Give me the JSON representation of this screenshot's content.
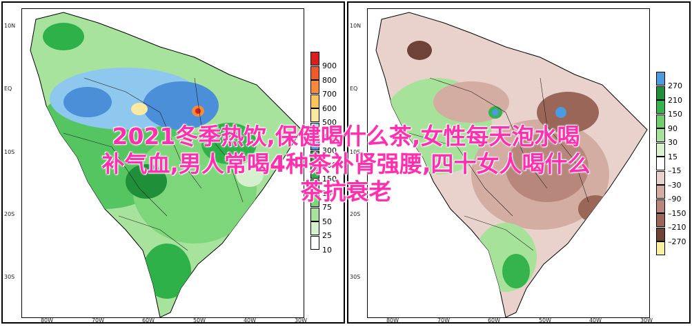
{
  "left_map": {
    "lat_labels": [
      "10N",
      "EQ",
      "10S",
      "20S",
      "30S"
    ],
    "lon_labels": [
      "80W",
      "70W",
      "60W",
      "50W",
      "40W",
      "30W"
    ],
    "legend": [
      {
        "label": "900",
        "color": "#d81e1e"
      },
      {
        "label": "800",
        "color": "#ee5a2a"
      },
      {
        "label": "700",
        "color": "#f88a3a"
      },
      {
        "label": "600",
        "color": "#f9c45a"
      },
      {
        "label": "500",
        "color": "#fbe9a0"
      },
      {
        "label": "400",
        "color": "#8ec8ef"
      },
      {
        "label": "300",
        "color": "#4a8fd8"
      },
      {
        "label": "200",
        "color": "#1f8f3a"
      },
      {
        "label": "150",
        "color": "#2fb14a"
      },
      {
        "label": "100",
        "color": "#54c560"
      },
      {
        "label": "75",
        "color": "#7ed67a"
      },
      {
        "label": "50",
        "color": "#a8e39e"
      },
      {
        "label": "25",
        "color": "#d4f0cc"
      },
      {
        "label": "10",
        "color": "#ffffff"
      }
    ]
  },
  "right_map": {
    "lat_labels": [
      "10N",
      "EQ",
      "10S",
      "20S",
      "30S"
    ],
    "lon_labels": [
      "80W",
      "70W",
      "60W",
      "50W",
      "40W",
      "30W"
    ],
    "legend": [
      {
        "label": "270",
        "color": "#4a9be0"
      },
      {
        "label": "210",
        "color": "#1f8f3a"
      },
      {
        "label": "150",
        "color": "#35b34c"
      },
      {
        "label": "90",
        "color": "#6fcf6c"
      },
      {
        "label": "30",
        "color": "#a6e29a"
      },
      {
        "label": "15",
        "color": "#d8f2d0"
      },
      {
        "label": "–15",
        "color": "#ffffff"
      },
      {
        "label": "–30",
        "color": "#e9d2cc"
      },
      {
        "label": "–90",
        "color": "#d3aca2"
      },
      {
        "label": "–150",
        "color": "#b8877c"
      },
      {
        "label": "–210",
        "color": "#9a6658"
      },
      {
        "label": "–270",
        "color": "#6e4236"
      },
      {
        "label": "",
        "color": "#fbf0a0"
      }
    ]
  },
  "overlay": {
    "line1": "2021冬季热饮,保健喝什么茶,女性每天泡水喝",
    "line2": "补气血,男人常喝4种茶补肾强腰,四十女人喝什么",
    "line3": "茶抗衰老"
  }
}
